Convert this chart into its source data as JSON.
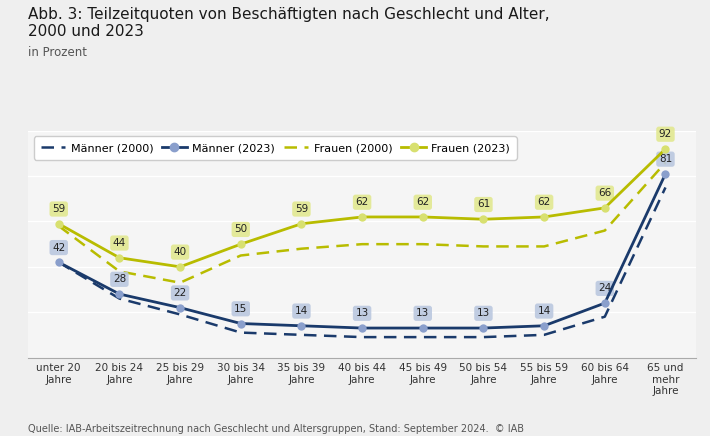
{
  "title_line1": "Abb. 3: Teilzeitquoten von Beschäftigten nach Geschlecht und Alter,",
  "title_line2": "2000 und 2023",
  "ylabel": "in Prozent",
  "source": "Quelle: IAB-Arbeitszeitrechnung nach Geschlecht und Altersgruppen, Stand: September 2024.  © IAB",
  "categories": [
    "unter 20\nJahre",
    "20 bis 24\nJahre",
    "25 bis 29\nJahre",
    "30 bis 34\nJahre",
    "35 bis 39\nJahre",
    "40 bis 44\nJahre",
    "45 bis 49\nJahre",
    "50 bis 54\nJahre",
    "55 bis 59\nJahre",
    "60 bis 64\nJahre",
    "65 und\nmehr\nJahre"
  ],
  "maenner_2023": [
    42,
    28,
    22,
    15,
    14,
    13,
    13,
    13,
    14,
    24,
    81
  ],
  "frauen_2023": [
    59,
    44,
    40,
    50,
    59,
    62,
    62,
    61,
    62,
    66,
    92
  ],
  "maenner_2000": [
    42,
    26,
    19,
    11,
    10,
    9,
    9,
    9,
    10,
    18,
    75
  ],
  "frauen_2000": [
    58,
    38,
    33,
    45,
    48,
    50,
    50,
    49,
    49,
    56,
    86
  ],
  "color_m": "#1a3a6b",
  "color_f": "#b8bc00",
  "marker_color_m": "#8a9fcc",
  "marker_color_f": "#d8e070",
  "bg_fig": "#efefef",
  "bg_ax": "#f5f5f5",
  "grid_color": "#ffffff",
  "ylim": [
    0,
    100
  ],
  "legend_labels": [
    "Männer (2000)",
    "Männer (2023)",
    "Frauen (2000)",
    "Frauen (2023)"
  ]
}
